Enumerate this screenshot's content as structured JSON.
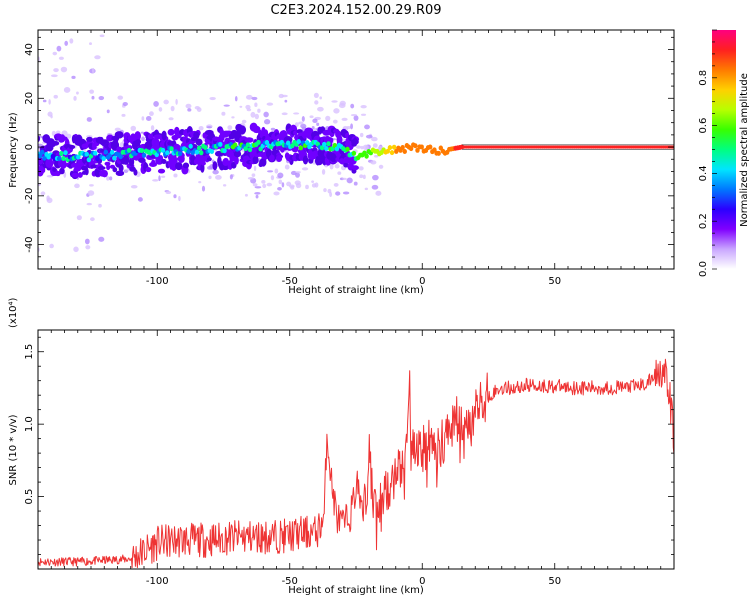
{
  "title": "C2E3.2024.152.00.29.R09",
  "chart_data": [
    {
      "type": "heatmap",
      "title": "C2E3.2024.152.00.29.R09",
      "xlabel": "Height of straight line (km)",
      "ylabel": "Frequency (Hz)",
      "xlim": [
        -145,
        95
      ],
      "ylim": [
        -50,
        48
      ],
      "xticks": [
        "-100",
        "-50",
        "0",
        "50"
      ],
      "yticks": [
        "-40",
        "-20",
        "0",
        "20",
        "40"
      ],
      "colorbar": {
        "label": "Normalized spectral amplitude",
        "range": [
          0.0,
          1.0
        ],
        "ticks": [
          "0.0",
          "0.2",
          "0.4",
          "0.6",
          "0.8"
        ],
        "colors": [
          "#ffffff",
          "#c9a6ff",
          "#8000ff",
          "#2b00ff",
          "#0078ff",
          "#00e5ff",
          "#00ff80",
          "#38ff00",
          "#b8ff00",
          "#ffd000",
          "#ff7a00",
          "#ff2020",
          "#ff007f"
        ]
      },
      "ridge": [
        {
          "x": -145,
          "y": -3,
          "amp": 0.35
        },
        {
          "x": -130,
          "y": -4,
          "amp": 0.4
        },
        {
          "x": -115,
          "y": -3,
          "amp": 0.4
        },
        {
          "x": -100,
          "y": -2,
          "amp": 0.42
        },
        {
          "x": -85,
          "y": -1,
          "amp": 0.42
        },
        {
          "x": -70,
          "y": 0,
          "amp": 0.45
        },
        {
          "x": -55,
          "y": 1,
          "amp": 0.45
        },
        {
          "x": -40,
          "y": 1,
          "amp": 0.45
        },
        {
          "x": -30,
          "y": 0,
          "amp": 0.5
        },
        {
          "x": -25,
          "y": -4,
          "amp": 0.55
        },
        {
          "x": -20,
          "y": -3,
          "amp": 0.6
        },
        {
          "x": -15,
          "y": -2,
          "amp": 0.7
        },
        {
          "x": -10,
          "y": -1,
          "amp": 0.8
        },
        {
          "x": -5,
          "y": 0,
          "amp": 0.85
        },
        {
          "x": 0,
          "y": 0,
          "amp": 0.85
        },
        {
          "x": 5,
          "y": -2,
          "amp": 0.8
        },
        {
          "x": 10,
          "y": -1,
          "amp": 0.85
        },
        {
          "x": 15,
          "y": 0,
          "amp": 0.9
        },
        {
          "x": 95,
          "y": 0,
          "amp": 0.9
        }
      ]
    },
    {
      "type": "line",
      "xlabel": "Height of straight line (km)",
      "ylabel": "SNR (10 * v/v)",
      "yscale_label": "(x10⁴)",
      "xlim": [
        -145,
        95
      ],
      "ylim": [
        0,
        1.65
      ],
      "xticks": [
        "-100",
        "-50",
        "0",
        "50"
      ],
      "yticks": [
        "0.5",
        "1.0",
        "1.5"
      ],
      "color": "#ee3333",
      "x": [
        -145,
        -130,
        -120,
        -110,
        -105,
        -100,
        -90,
        -80,
        -70,
        -60,
        -50,
        -45,
        -40,
        -37,
        -36,
        -35,
        -34,
        -32,
        -30,
        -27,
        -25,
        -23,
        -21,
        -20,
        -19,
        -18,
        -16,
        -14,
        -12,
        -10,
        -8,
        -6,
        -5,
        -4,
        -2,
        0,
        2,
        4,
        6,
        8,
        10,
        12,
        14,
        16,
        18,
        20,
        22,
        25,
        30,
        35,
        40,
        50,
        60,
        70,
        80,
        85,
        88,
        90,
        92,
        94,
        95
      ],
      "y": [
        0.05,
        0.05,
        0.06,
        0.07,
        0.12,
        0.18,
        0.2,
        0.2,
        0.22,
        0.22,
        0.23,
        0.25,
        0.25,
        0.35,
        0.95,
        0.75,
        0.55,
        0.35,
        0.3,
        0.38,
        0.55,
        0.5,
        0.45,
        0.8,
        0.55,
        0.45,
        0.4,
        0.55,
        0.6,
        0.6,
        0.7,
        0.8,
        1.3,
        0.9,
        0.85,
        0.8,
        0.9,
        0.9,
        0.85,
        0.9,
        0.95,
        1.05,
        1.0,
        0.9,
        0.95,
        1.05,
        1.15,
        1.2,
        1.25,
        1.25,
        1.27,
        1.26,
        1.25,
        1.25,
        1.26,
        1.28,
        1.35,
        1.4,
        1.3,
        1.1,
        0.9
      ]
    }
  ]
}
